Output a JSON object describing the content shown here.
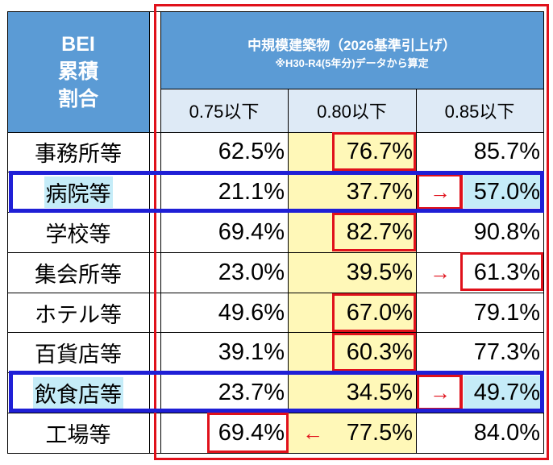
{
  "header": {
    "left_lines": [
      "BEI",
      "累積",
      "割合"
    ],
    "title": "中規模建築物（2026基準引上げ）",
    "note": "※H30-R4(5年分)データから算定",
    "columns": [
      "0.75以下",
      "0.80以下",
      "0.85以下"
    ]
  },
  "rows": [
    {
      "label": "事務所等",
      "v1": "62.5%",
      "v2": "76.7%",
      "v3": "85.7%"
    },
    {
      "label": "病院等",
      "v1": "21.1%",
      "v2": "37.7%",
      "v3": "57.0%"
    },
    {
      "label": "学校等",
      "v1": "69.4%",
      "v2": "82.7%",
      "v3": "90.8%"
    },
    {
      "label": "集会所等",
      "v1": "23.0%",
      "v2": "39.5%",
      "v3": "61.3%"
    },
    {
      "label": "ホテル等",
      "v1": "49.6%",
      "v2": "67.0%",
      "v3": "79.1%"
    },
    {
      "label": "百貨店等",
      "v1": "39.1%",
      "v2": "60.3%",
      "v3": "77.3%"
    },
    {
      "label": "飲食店等",
      "v1": "23.7%",
      "v2": "34.5%",
      "v3": "49.7%"
    },
    {
      "label": "工場等",
      "v1": "69.4%",
      "v2": "77.5%",
      "v3": "84.0%"
    }
  ],
  "arrows": {
    "right": "→",
    "left": "←"
  },
  "colors": {
    "header_blue": "#5b9bd5",
    "subheader": "#deeaf6",
    "highlight_yellow": "#fff8b8",
    "highlight_cyan": "#c5ecf8",
    "red": "#e0111b",
    "blue": "#1f1fd6"
  }
}
